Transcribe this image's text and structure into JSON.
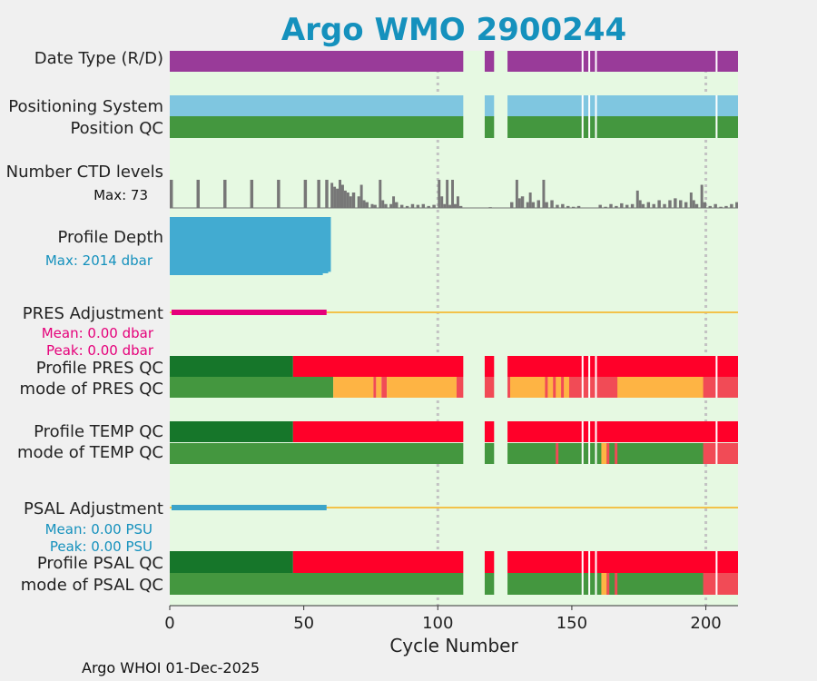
{
  "title": "Argo WMO 2900244",
  "footer": "Argo WHOI 01-Dec-2025",
  "colors": {
    "background": "#f0f0f0",
    "plot_bg": "#e6f9e2",
    "title": "#1591bd",
    "purple": "#993b99",
    "light_blue": "#7fc6e0",
    "green": "#44973f",
    "dark_green": "#16762a",
    "red": "#ff0029",
    "light_red": "#f14b56",
    "orange": "#feb444",
    "gray": "#777777",
    "depth_blue": "#42abd1",
    "magenta": "#e5007a",
    "adj_line": "#f2c24a",
    "psal_blue": "#3ca5c9",
    "grid": "#c3c3c3"
  },
  "chart_data": {
    "type": "bar",
    "xlabel": "Cycle Number",
    "xlim": [
      0,
      212
    ],
    "xticks": [
      "0",
      "50",
      "100",
      "150",
      "200"
    ],
    "grid_x": [
      100,
      200
    ],
    "missing_cycles": [
      [
        109.5,
        117.5
      ],
      [
        121,
        126
      ]
    ],
    "white_gaps": [
      154,
      156.5,
      159,
      204
    ],
    "rows": [
      {
        "label": "Date Type (R/D)",
        "segments": [
          {
            "x0": 0,
            "x1": 212,
            "color": "purple"
          }
        ]
      },
      {
        "label": "Positioning System",
        "segments": [
          {
            "x0": 0,
            "x1": 212,
            "color": "light_blue"
          }
        ]
      },
      {
        "label": "Position QC",
        "segments": [
          {
            "x0": 0,
            "x1": 212,
            "color": "green"
          }
        ]
      },
      {
        "label": "Profile PRES QC",
        "segments": [
          {
            "x0": 0,
            "x1": 46,
            "color": "dark_green"
          },
          {
            "x0": 46,
            "x1": 212,
            "color": "red"
          }
        ]
      },
      {
        "label": "mode of PRES QC",
        "segments": [
          {
            "x0": 0,
            "x1": 61,
            "color": "green"
          },
          {
            "x0": 61,
            "x1": 76,
            "color": "orange"
          },
          {
            "x0": 76,
            "x1": 77,
            "color": "light_red"
          },
          {
            "x0": 77,
            "x1": 79,
            "color": "orange"
          },
          {
            "x0": 79,
            "x1": 81,
            "color": "light_red"
          },
          {
            "x0": 81,
            "x1": 107,
            "color": "orange"
          },
          {
            "x0": 107,
            "x1": 212,
            "color": "light_red"
          },
          {
            "x0": 127,
            "x1": 140,
            "color": "orange"
          },
          {
            "x0": 141,
            "x1": 143,
            "color": "orange"
          },
          {
            "x0": 144,
            "x1": 146,
            "color": "orange"
          },
          {
            "x0": 147,
            "x1": 149,
            "color": "orange"
          },
          {
            "x0": 167,
            "x1": 199,
            "color": "orange"
          }
        ]
      },
      {
        "label": "Profile TEMP QC",
        "segments": [
          {
            "x0": 0,
            "x1": 46,
            "color": "dark_green"
          },
          {
            "x0": 46,
            "x1": 212,
            "color": "red"
          }
        ]
      },
      {
        "label": "mode of TEMP QC",
        "segments": [
          {
            "x0": 0,
            "x1": 212,
            "color": "green"
          },
          {
            "x0": 144,
            "x1": 145,
            "color": "light_red"
          },
          {
            "x0": 161,
            "x1": 163,
            "color": "orange"
          },
          {
            "x0": 163,
            "x1": 164,
            "color": "light_red"
          },
          {
            "x0": 166,
            "x1": 167,
            "color": "light_red"
          },
          {
            "x0": 199,
            "x1": 212,
            "color": "light_red"
          }
        ]
      },
      {
        "label": "Profile PSAL QC",
        "segments": [
          {
            "x0": 0,
            "x1": 46,
            "color": "dark_green"
          },
          {
            "x0": 46,
            "x1": 212,
            "color": "red"
          }
        ]
      },
      {
        "label": "mode of PSAL QC",
        "segments": [
          {
            "x0": 0,
            "x1": 212,
            "color": "green"
          },
          {
            "x0": 161,
            "x1": 163,
            "color": "orange"
          },
          {
            "x0": 163,
            "x1": 164,
            "color": "light_red"
          },
          {
            "x0": 166,
            "x1": 167,
            "color": "light_red"
          },
          {
            "x0": 199,
            "x1": 212,
            "color": "light_red"
          }
        ]
      }
    ],
    "ctd_levels": {
      "label": "Number CTD levels",
      "max_label": "Max: 73",
      "max": 73,
      "values": [
        [
          0,
          73
        ],
        [
          10,
          73
        ],
        [
          20,
          73
        ],
        [
          30,
          73
        ],
        [
          40,
          73
        ],
        [
          50,
          73
        ],
        [
          55,
          73
        ],
        [
          58,
          73
        ],
        [
          60,
          65
        ],
        [
          61,
          55
        ],
        [
          62,
          50
        ],
        [
          63,
          73
        ],
        [
          64,
          60
        ],
        [
          65,
          45
        ],
        [
          66,
          40
        ],
        [
          67,
          30
        ],
        [
          68,
          40
        ],
        [
          70,
          30
        ],
        [
          71,
          60
        ],
        [
          72,
          20
        ],
        [
          73,
          15
        ],
        [
          75,
          10
        ],
        [
          76,
          8
        ],
        [
          78,
          73
        ],
        [
          79,
          20
        ],
        [
          80,
          10
        ],
        [
          82,
          10
        ],
        [
          83,
          30
        ],
        [
          84,
          15
        ],
        [
          86,
          8
        ],
        [
          88,
          5
        ],
        [
          90,
          10
        ],
        [
          92,
          8
        ],
        [
          94,
          10
        ],
        [
          96,
          5
        ],
        [
          98,
          8
        ],
        [
          100,
          73
        ],
        [
          101,
          30
        ],
        [
          102,
          10
        ],
        [
          103,
          73
        ],
        [
          104,
          8
        ],
        [
          105,
          73
        ],
        [
          106,
          10
        ],
        [
          107,
          30
        ],
        [
          108,
          5
        ],
        [
          119,
          2
        ],
        [
          127,
          15
        ],
        [
          129,
          73
        ],
        [
          130,
          25
        ],
        [
          131,
          30
        ],
        [
          133,
          15
        ],
        [
          134,
          40
        ],
        [
          135,
          15
        ],
        [
          137,
          20
        ],
        [
          139,
          73
        ],
        [
          140,
          15
        ],
        [
          142,
          20
        ],
        [
          144,
          8
        ],
        [
          146,
          10
        ],
        [
          148,
          5
        ],
        [
          150,
          3
        ],
        [
          152,
          5
        ],
        [
          160,
          8
        ],
        [
          162,
          3
        ],
        [
          164,
          10
        ],
        [
          166,
          5
        ],
        [
          168,
          12
        ],
        [
          170,
          8
        ],
        [
          172,
          10
        ],
        [
          174,
          45
        ],
        [
          175,
          20
        ],
        [
          176,
          10
        ],
        [
          178,
          15
        ],
        [
          180,
          10
        ],
        [
          182,
          20
        ],
        [
          184,
          10
        ],
        [
          186,
          20
        ],
        [
          188,
          25
        ],
        [
          190,
          20
        ],
        [
          192,
          15
        ],
        [
          194,
          40
        ],
        [
          195,
          20
        ],
        [
          196,
          10
        ],
        [
          198,
          60
        ],
        [
          199,
          15
        ],
        [
          201,
          5
        ],
        [
          203,
          10
        ],
        [
          205,
          3
        ],
        [
          207,
          5
        ],
        [
          209,
          10
        ],
        [
          211,
          15
        ]
      ]
    },
    "profile_depth": {
      "label": "Profile Depth",
      "max_label": "Max: 2014 dbar",
      "max": 2014,
      "values": [
        [
          0,
          2014
        ],
        [
          56,
          2014
        ],
        [
          57,
          1950
        ],
        [
          58,
          1950
        ],
        [
          59,
          1900
        ]
      ]
    },
    "pres_adjustment": {
      "label": "PRES Adjustment",
      "mean_label": "Mean: 0.00 dbar",
      "peak_label": "Peak: 0.00 dbar",
      "adjusted_until": 58.5
    },
    "psal_adjustment": {
      "label": "PSAL Adjustment",
      "mean_label": "Mean: 0.00 PSU",
      "peak_label": "Peak: 0.00 PSU",
      "adjusted_until": 58.5
    }
  }
}
